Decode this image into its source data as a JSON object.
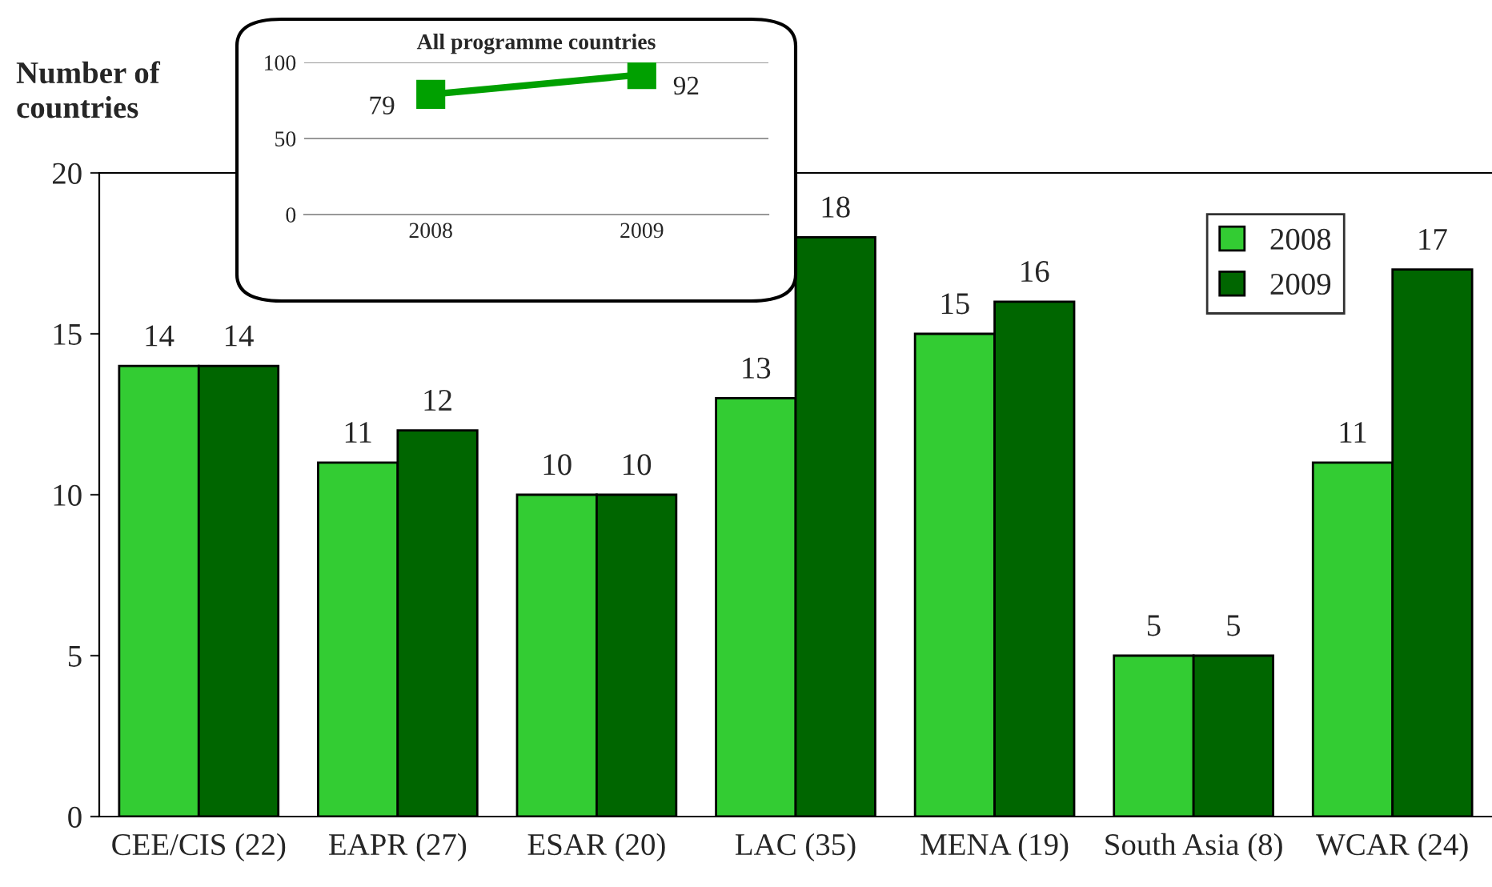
{
  "chart_data": [
    {
      "type": "bar",
      "ylabel": "Number of\ncountries",
      "categories": [
        "CEE/CIS (22)",
        "EAPR (27)",
        "ESAR (20)",
        "LAC (35)",
        "MENA (19)",
        "South Asia (8)",
        "WCAR (24)"
      ],
      "series": [
        {
          "name": "2008",
          "color": "#33cc33",
          "values": [
            14,
            11,
            10,
            13,
            15,
            5,
            11
          ]
        },
        {
          "name": "2009",
          "color": "#006600",
          "values": [
            14,
            12,
            10,
            18,
            16,
            5,
            17
          ]
        }
      ],
      "ylim": [
        0,
        20
      ],
      "yticks": [
        0,
        5,
        10,
        15,
        20
      ],
      "data_labels": true,
      "legend": "top right",
      "grid": false
    },
    {
      "type": "line",
      "title": "All programme countries",
      "categories": [
        "2008",
        "2009"
      ],
      "series": [
        {
          "color": "#00a000",
          "values": [
            79,
            92
          ]
        }
      ],
      "ylim": [
        0,
        100
      ],
      "yticks": [
        0,
        50,
        100
      ],
      "data_labels": true,
      "marker": "square",
      "grid": "y"
    }
  ]
}
